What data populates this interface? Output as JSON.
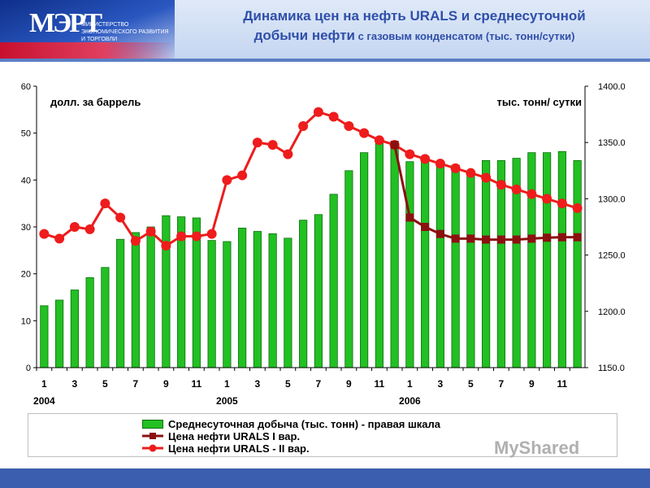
{
  "header": {
    "logo_mark": "МЭРТ",
    "logo_text": "МИНИСТЕРСТВО ЭКОНОМИЧЕСКОГО РАЗВИТИЯ И ТОРГОВЛИ",
    "title_line1": "Динамика  цен на нефть URALS и среднесуточной",
    "title_line2": "добычи нефти",
    "title_line2_sub": " с газовым конденсатом (тыс. тонн/сутки)"
  },
  "watermark": "MyShared",
  "chart_data": {
    "type": "bar",
    "left_axis_label": "долл. за баррель",
    "right_axis_label": "тыс. тонн/ сутки",
    "left_ylim": [
      0,
      60
    ],
    "left_ticks": [
      "0",
      "10",
      "20",
      "30",
      "40",
      "50",
      "60"
    ],
    "right_ylim": [
      1150,
      1400
    ],
    "right_ticks": [
      "1150.0",
      "1200.0",
      "1250.0",
      "1300.0",
      "1350.0",
      "1400.0"
    ],
    "x_tick_labels": [
      "1",
      "",
      "3",
      "",
      "5",
      "",
      "7",
      "",
      "9",
      "",
      "11",
      "",
      "1",
      "",
      "3",
      "",
      "5",
      "",
      "7",
      "",
      "9",
      "",
      "11",
      "",
      "1",
      "",
      "3",
      "",
      "5",
      "",
      "7",
      "",
      "9",
      "",
      "11",
      ""
    ],
    "year_labels": [
      {
        "label": "2004",
        "month_index": 0
      },
      {
        "label": "2005",
        "month_index": 12
      },
      {
        "label": "2006",
        "month_index": 24
      }
    ],
    "series": [
      {
        "name": "Среднесуточная добыча (тыс. тонн) - правая шкала",
        "type": "bar",
        "axis": "right",
        "color": "#22c022",
        "values": [
          1205,
          1210,
          1219,
          1230,
          1239,
          1264,
          1270,
          1275,
          1285,
          1284,
          1283,
          1263,
          1262,
          1274,
          1271,
          1269,
          1265,
          1281,
          1286,
          1304,
          1325,
          1341,
          1352,
          1346,
          1333,
          1334,
          1333,
          1330,
          1323,
          1334,
          1334,
          1336,
          1341,
          1341,
          1342,
          1334
        ]
      },
      {
        "name": "Цена нефти URALS I вар.",
        "type": "line",
        "axis": "left",
        "color": "#8b1010",
        "marker": "square",
        "start_index": 23,
        "values": [
          47.5,
          32,
          30,
          28.5,
          27.5,
          27.5,
          27.3,
          27.3,
          27.3,
          27.5,
          27.7,
          27.8,
          27.8
        ]
      },
      {
        "name": "Цена нефти URALS - II вар.",
        "type": "line",
        "axis": "left",
        "color": "#ee1c1c",
        "marker": "circle",
        "start_index": 0,
        "values": [
          28.5,
          27.5,
          30,
          29.5,
          35,
          32,
          27,
          29,
          26,
          28,
          28,
          28.5,
          40,
          41,
          48,
          47.5,
          45.5,
          51.5,
          54.5,
          53.5,
          51.5,
          50,
          48.5,
          47.5,
          45.5,
          44.5,
          43.5,
          42.5,
          41.5,
          40.5,
          39,
          38,
          37,
          36,
          35,
          34
        ]
      }
    ],
    "grid": false
  }
}
